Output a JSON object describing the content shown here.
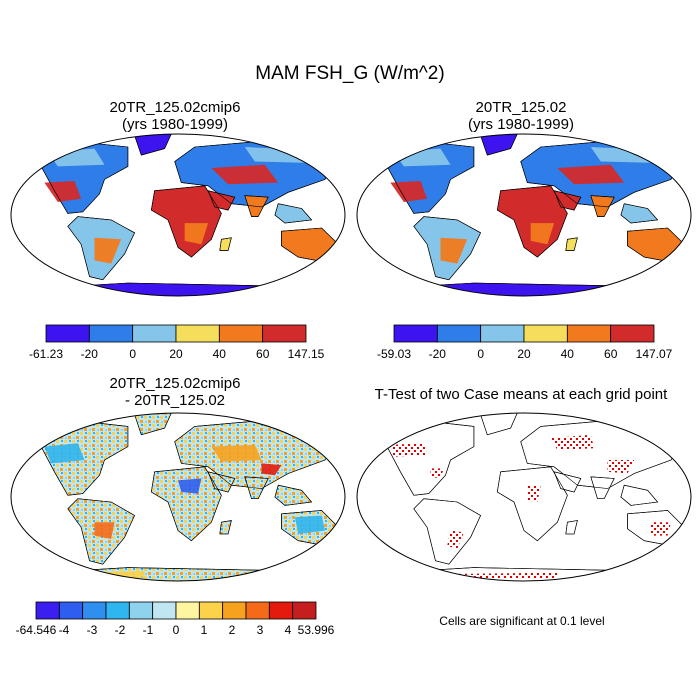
{
  "figure": {
    "title": "MAM FSH_G (W/m^2)"
  },
  "panels": [
    {
      "id": "p1",
      "title1": "20TR_125.02cmip6",
      "title2": "(yrs 1980-1999)"
    },
    {
      "id": "p2",
      "title1": "20TR_125.02",
      "title2": "(yrs 1980-1999)"
    },
    {
      "id": "p3",
      "title1": "20TR_125.02cmip6",
      "title2": "- 20TR_125.02"
    },
    {
      "id": "p4",
      "title1": "T-Test of two Case means at each grid point",
      "title2": ""
    }
  ],
  "note": "Cells are significant at 0.1 level",
  "chart_data": [
    {
      "type": "heatmap",
      "title": "20TR_125.02cmip6 (yrs 1980-1999)",
      "projection": "robinson-world-map",
      "colorbar": {
        "labels": [
          "-61.23",
          "-20",
          "0",
          "20",
          "40",
          "60",
          "147.15"
        ],
        "colors": [
          "#3d14f0",
          "#2e7de8",
          "#86c5ea",
          "#f5de5c",
          "#f27a1e",
          "#d22b2b"
        ]
      }
    },
    {
      "type": "heatmap",
      "title": "20TR_125.02 (yrs 1980-1999)",
      "projection": "robinson-world-map",
      "colorbar": {
        "labels": [
          "-59.03",
          "-20",
          "0",
          "20",
          "40",
          "60",
          "147.07"
        ],
        "colors": [
          "#3d14f0",
          "#2e7de8",
          "#86c5ea",
          "#f5de5c",
          "#f27a1e",
          "#d22b2b"
        ]
      }
    },
    {
      "type": "heatmap",
      "title": "20TR_125.02cmip6 - 20TR_125.02",
      "projection": "robinson-world-map",
      "colorbar": {
        "labels": [
          "-64.546",
          "-4",
          "-3",
          "-2",
          "-1",
          "0",
          "1",
          "2",
          "3",
          "4",
          "53.996"
        ],
        "colors": [
          "#3a1ff0",
          "#2d5ef0",
          "#2f8ff0",
          "#2fb5f0",
          "#8fd2ee",
          "#bfe6f2",
          "#fff5a0",
          "#fcd24a",
          "#f7a21e",
          "#f56a18",
          "#e41a0e",
          "#c41e1e"
        ]
      }
    },
    {
      "type": "heatmap",
      "title": "T-Test of two Case means at each grid point",
      "projection": "robinson-world-map",
      "significance_color": "#e00000"
    }
  ]
}
